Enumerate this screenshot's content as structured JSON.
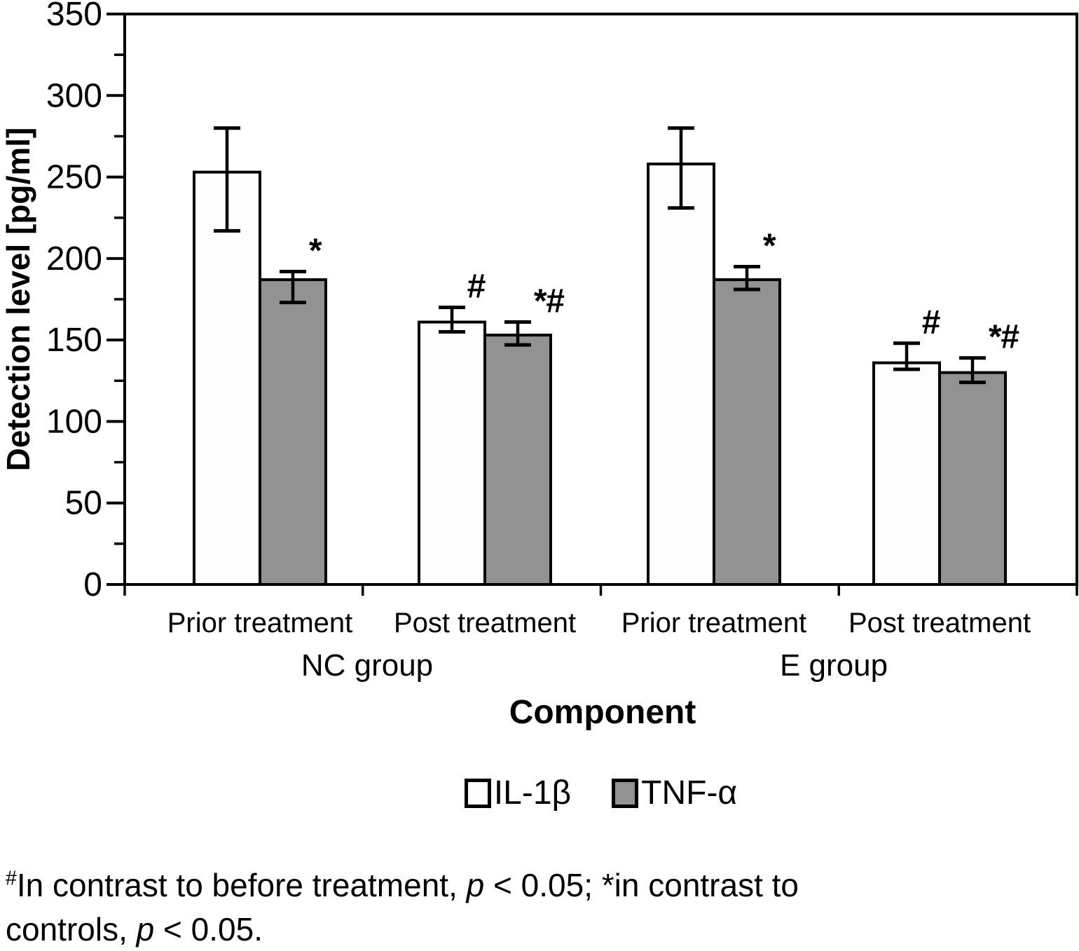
{
  "y_axis": {
    "label": "Detection level [pg/ml]",
    "tick_labels": [
      "0",
      "50",
      "100",
      "150",
      "200",
      "250",
      "300",
      "350"
    ]
  },
  "x_axis": {
    "label": "Component",
    "categories": [
      "Prior treatment",
      "Post treatment",
      "Prior treatment",
      "Post treatment"
    ],
    "groups": [
      "NC group",
      "E group"
    ]
  },
  "legend": {
    "items": [
      {
        "label": "IL-1β",
        "color": "#fdfdfd"
      },
      {
        "label": "TNF-α",
        "color": "#929292"
      }
    ]
  },
  "footnote": {
    "line1_sup": "#",
    "line1_a": "In contrast to before treatment, ",
    "line1_p": "p",
    "line1_b": " < 0.05; *in contrast to",
    "line2_a": "controls, ",
    "line2_p": "p",
    "line2_b": " < 0.05."
  },
  "colors": {
    "ink": "#000000",
    "bar_white": "#fdfdfd",
    "bar_gray": "#929292"
  },
  "chart_data": {
    "type": "bar",
    "title": "",
    "xlabel": "Component",
    "ylabel": "Detection level [pg/ml]",
    "ylim": [
      0,
      350
    ],
    "ytick_step": 50,
    "yminor_step": 25,
    "grid": false,
    "legend_position": "bottom",
    "categories": [
      "Prior treatment",
      "Post treatment",
      "Prior treatment",
      "Post treatment"
    ],
    "group_labels": [
      "NC group",
      "E group"
    ],
    "series": [
      {
        "name": "IL-1β",
        "fill": "#fdfdfd",
        "values": [
          253,
          161,
          258,
          136
        ],
        "err_hi": [
          280,
          170,
          280,
          148
        ],
        "err_lo": [
          217,
          155,
          231,
          132
        ],
        "annotations": [
          "",
          "#",
          "",
          "#"
        ]
      },
      {
        "name": "TNF-α",
        "fill": "#929292",
        "values": [
          187,
          153,
          187,
          130
        ],
        "err_hi": [
          192,
          161,
          195,
          139
        ],
        "err_lo": [
          173,
          147,
          181,
          124
        ],
        "annotations": [
          "*",
          "*#",
          "*",
          "*#"
        ]
      }
    ]
  }
}
